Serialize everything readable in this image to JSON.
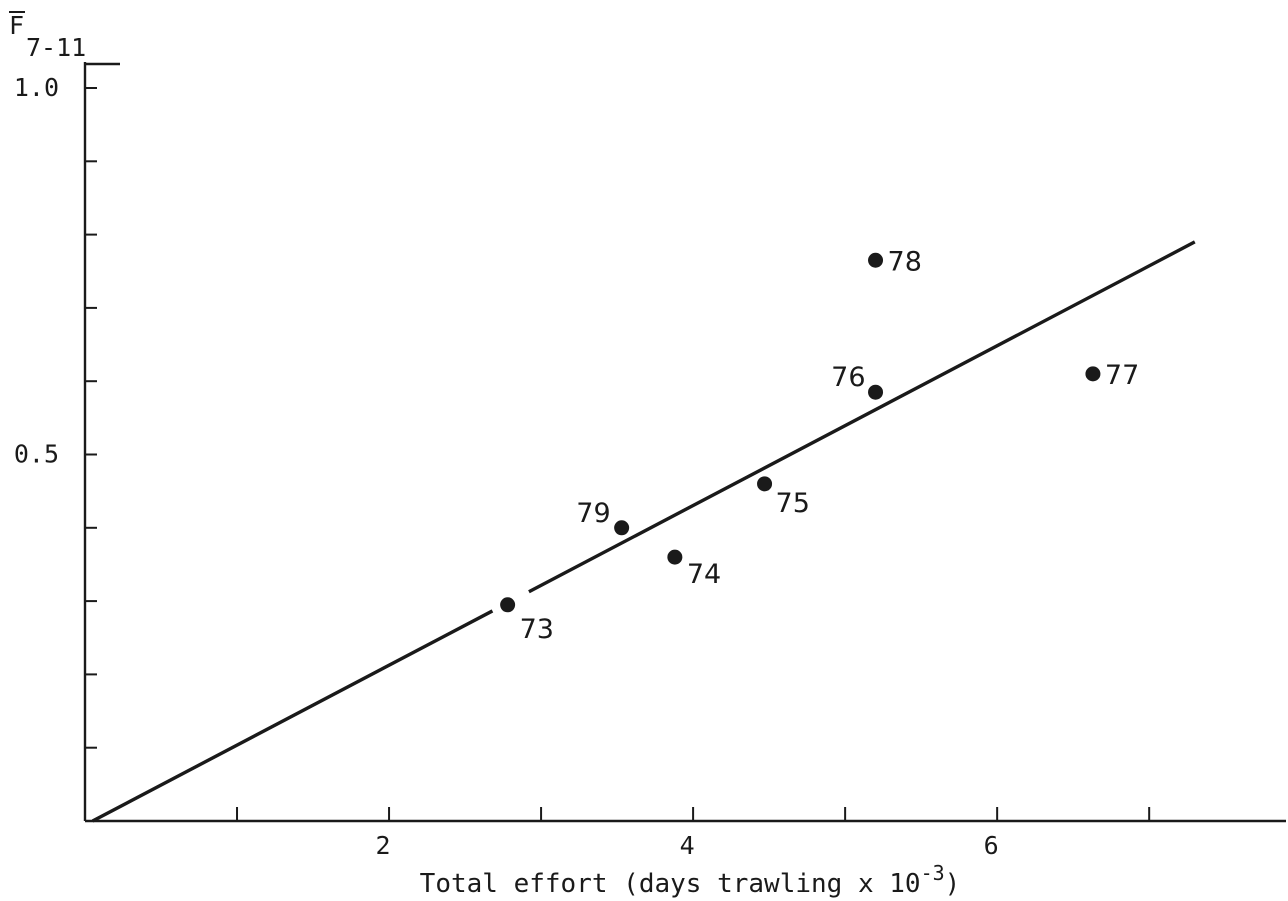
{
  "chart_data": {
    "type": "scatter",
    "title": "",
    "ylabel": {
      "main": "F",
      "subscript": "7-11",
      "overbar": true
    },
    "xlabel": {
      "main": "Total effort (days trawling x 10",
      "superscript": "-3",
      "suffix": ")"
    },
    "xlim": [
      0,
      7.9
    ],
    "ylim": [
      0,
      1.0
    ],
    "x_ticks": [
      1,
      2,
      3,
      4,
      5,
      6,
      7
    ],
    "x_tick_labels": [
      {
        "value": 2,
        "text": "2"
      },
      {
        "value": 4,
        "text": "4"
      },
      {
        "value": 6,
        "text": "6"
      }
    ],
    "y_ticks": [
      0.1,
      0.2,
      0.3,
      0.4,
      0.5,
      0.6,
      0.7,
      0.8,
      0.9,
      1.0
    ],
    "y_tick_labels": [
      {
        "value": 0.5,
        "text": "0.5"
      },
      {
        "value": 1.0,
        "text": "1.0"
      }
    ],
    "grid": false,
    "legend": "none",
    "points": [
      {
        "label": "73",
        "x": 2.78,
        "y": 0.295
      },
      {
        "label": "74",
        "x": 3.88,
        "y": 0.36
      },
      {
        "label": "75",
        "x": 4.47,
        "y": 0.46
      },
      {
        "label": "76",
        "x": 5.2,
        "y": 0.585
      },
      {
        "label": "77",
        "x": 6.63,
        "y": 0.61
      },
      {
        "label": "78",
        "x": 5.2,
        "y": 0.765
      },
      {
        "label": "79",
        "x": 3.53,
        "y": 0.4
      }
    ],
    "fit_line": {
      "x": [
        0.05,
        7.3
      ],
      "y": [
        0.0,
        0.79
      ],
      "gap_between_x": [
        2.68,
        2.92
      ]
    }
  }
}
